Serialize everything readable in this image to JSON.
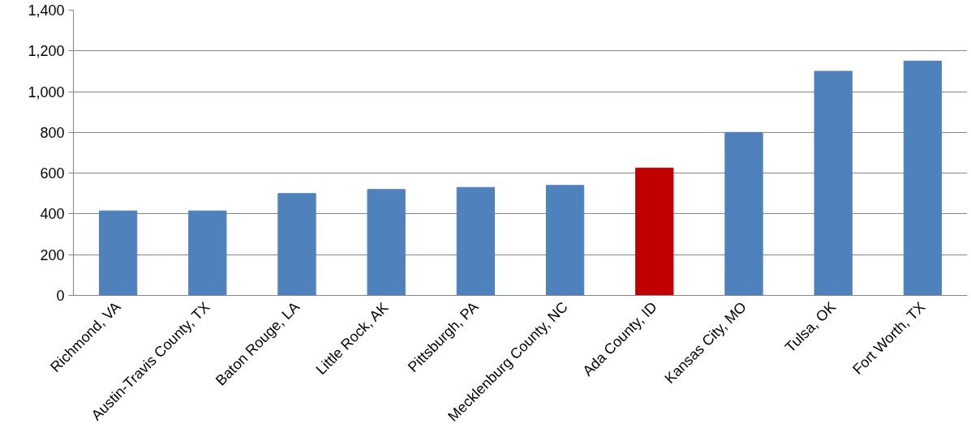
{
  "chart_data": {
    "type": "bar",
    "categories": [
      "Richmond, VA",
      "Austin-Travis County, TX",
      "Baton Rouge, LA",
      "Little Rock, AK",
      "Pittsburgh, PA",
      "Mecklenburg County, NC",
      "Ada County, ID",
      "Kansas City, MO",
      "Tulsa, OK",
      "Fort Worth, TX"
    ],
    "values": [
      415,
      415,
      500,
      520,
      530,
      540,
      625,
      800,
      1100,
      1150
    ],
    "colors": [
      "#4f81bd",
      "#4f81bd",
      "#4f81bd",
      "#4f81bd",
      "#4f81bd",
      "#4f81bd",
      "#c00000",
      "#4f81bd",
      "#4f81bd",
      "#4f81bd"
    ],
    "ylim": [
      0,
      1400
    ],
    "yticks": [
      0,
      {
        "value": 200,
        "label": "200"
      },
      {
        "value": 400,
        "label": "400"
      },
      {
        "value": 600,
        "label": "600"
      },
      {
        "value": 800,
        "label": "800"
      },
      {
        "value": 1000,
        "label": "1,000"
      },
      {
        "value": 1200,
        "label": "1,200"
      },
      {
        "value": 1400,
        "label": "1,400"
      }
    ],
    "grid": "y"
  }
}
